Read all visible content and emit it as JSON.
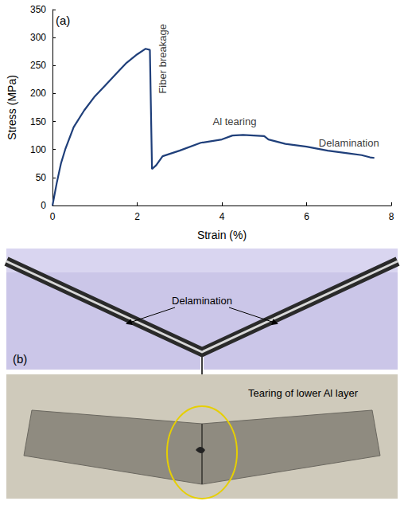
{
  "chart_data": {
    "type": "line",
    "panel_label": "(a)",
    "x_label": "Strain (%)",
    "y_label": "Stress (MPa)",
    "xlim": [
      0,
      8
    ],
    "xticks": [
      0,
      2,
      4,
      6,
      8
    ],
    "ylim": [
      0,
      350
    ],
    "yticks": [
      0,
      50,
      100,
      150,
      200,
      250,
      300,
      350
    ],
    "grid": false,
    "color": "#1f3f7a",
    "x": [
      0,
      0.1,
      0.2,
      0.3,
      0.5,
      0.75,
      1.0,
      1.25,
      1.5,
      1.75,
      2.0,
      2.2,
      2.3,
      2.35,
      2.45,
      2.6,
      3.0,
      3.5,
      4.0,
      4.25,
      4.5,
      5.0,
      5.1,
      5.5,
      6.0,
      6.5,
      7.0,
      7.3,
      7.5,
      7.6
    ],
    "values": [
      0,
      40,
      75,
      100,
      140,
      170,
      195,
      215,
      235,
      255,
      270,
      280,
      278,
      65,
      72,
      88,
      98,
      112,
      118,
      125,
      126,
      124,
      118,
      110,
      105,
      98,
      93,
      90,
      86,
      85
    ],
    "annotations": [
      {
        "text": "Fiber breakage",
        "x": 2.6,
        "y": 262,
        "orientation": "vertical"
      },
      {
        "text": "Al tearing",
        "x": 4.3,
        "y": 150
      },
      {
        "text": "Delamination",
        "x": 7.0,
        "y": 112
      }
    ]
  },
  "panel_b": {
    "label": "(b)",
    "top_annotation": "Delamination",
    "bottom_annotation": "Tearing of lower Al layer"
  }
}
